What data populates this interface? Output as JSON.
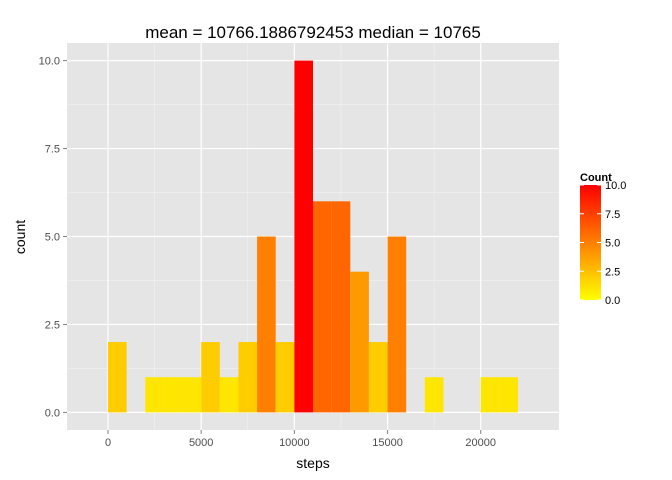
{
  "chart_data": {
    "type": "bar",
    "title": "mean =  10766.1886792453  median =  10765",
    "xlabel": "steps",
    "ylabel": "count",
    "xlim": [
      -2200,
      24200
    ],
    "ylim": [
      -0.5,
      10.5
    ],
    "x_ticks": [
      0,
      5000,
      10000,
      15000,
      20000
    ],
    "x_tick_labels": [
      "0",
      "5000",
      "10000",
      "15000",
      "20000"
    ],
    "y_ticks": [
      0,
      2.5,
      5,
      7.5,
      10
    ],
    "y_tick_labels": [
      "0.0",
      "2.5",
      "5.0",
      "7.5",
      "10.0"
    ],
    "grid": true,
    "bin_width": 1000,
    "bins": [
      {
        "x_start": 0,
        "x_end": 1000,
        "count": 2
      },
      {
        "x_start": 1000,
        "x_end": 2000,
        "count": 0
      },
      {
        "x_start": 2000,
        "x_end": 3000,
        "count": 1
      },
      {
        "x_start": 3000,
        "x_end": 4000,
        "count": 1
      },
      {
        "x_start": 4000,
        "x_end": 5000,
        "count": 1
      },
      {
        "x_start": 5000,
        "x_end": 6000,
        "count": 2
      },
      {
        "x_start": 6000,
        "x_end": 7000,
        "count": 1
      },
      {
        "x_start": 7000,
        "x_end": 8000,
        "count": 2
      },
      {
        "x_start": 8000,
        "x_end": 9000,
        "count": 5
      },
      {
        "x_start": 9000,
        "x_end": 10000,
        "count": 2
      },
      {
        "x_start": 10000,
        "x_end": 11000,
        "count": 10
      },
      {
        "x_start": 11000,
        "x_end": 12000,
        "count": 6
      },
      {
        "x_start": 12000,
        "x_end": 13000,
        "count": 6
      },
      {
        "x_start": 13000,
        "x_end": 14000,
        "count": 4
      },
      {
        "x_start": 14000,
        "x_end": 15000,
        "count": 2
      },
      {
        "x_start": 15000,
        "x_end": 16000,
        "count": 5
      },
      {
        "x_start": 16000,
        "x_end": 17000,
        "count": 0
      },
      {
        "x_start": 17000,
        "x_end": 18000,
        "count": 1
      },
      {
        "x_start": 18000,
        "x_end": 19000,
        "count": 0
      },
      {
        "x_start": 19000,
        "x_end": 20000,
        "count": 0
      },
      {
        "x_start": 20000,
        "x_end": 21000,
        "count": 1
      },
      {
        "x_start": 21000,
        "x_end": 22000,
        "count": 1
      }
    ],
    "legend": {
      "title": "Count",
      "position": "right",
      "breaks": [
        0,
        2.5,
        5,
        7.5,
        10
      ],
      "labels": [
        "0.0",
        "2.5",
        "5.0",
        "7.5",
        "10.0"
      ],
      "range": [
        0,
        10
      ],
      "low_color": "#ffff00",
      "high_color": "#ff0000"
    },
    "panel_background": "#e5e5e5",
    "grid_color": "#ffffff"
  }
}
